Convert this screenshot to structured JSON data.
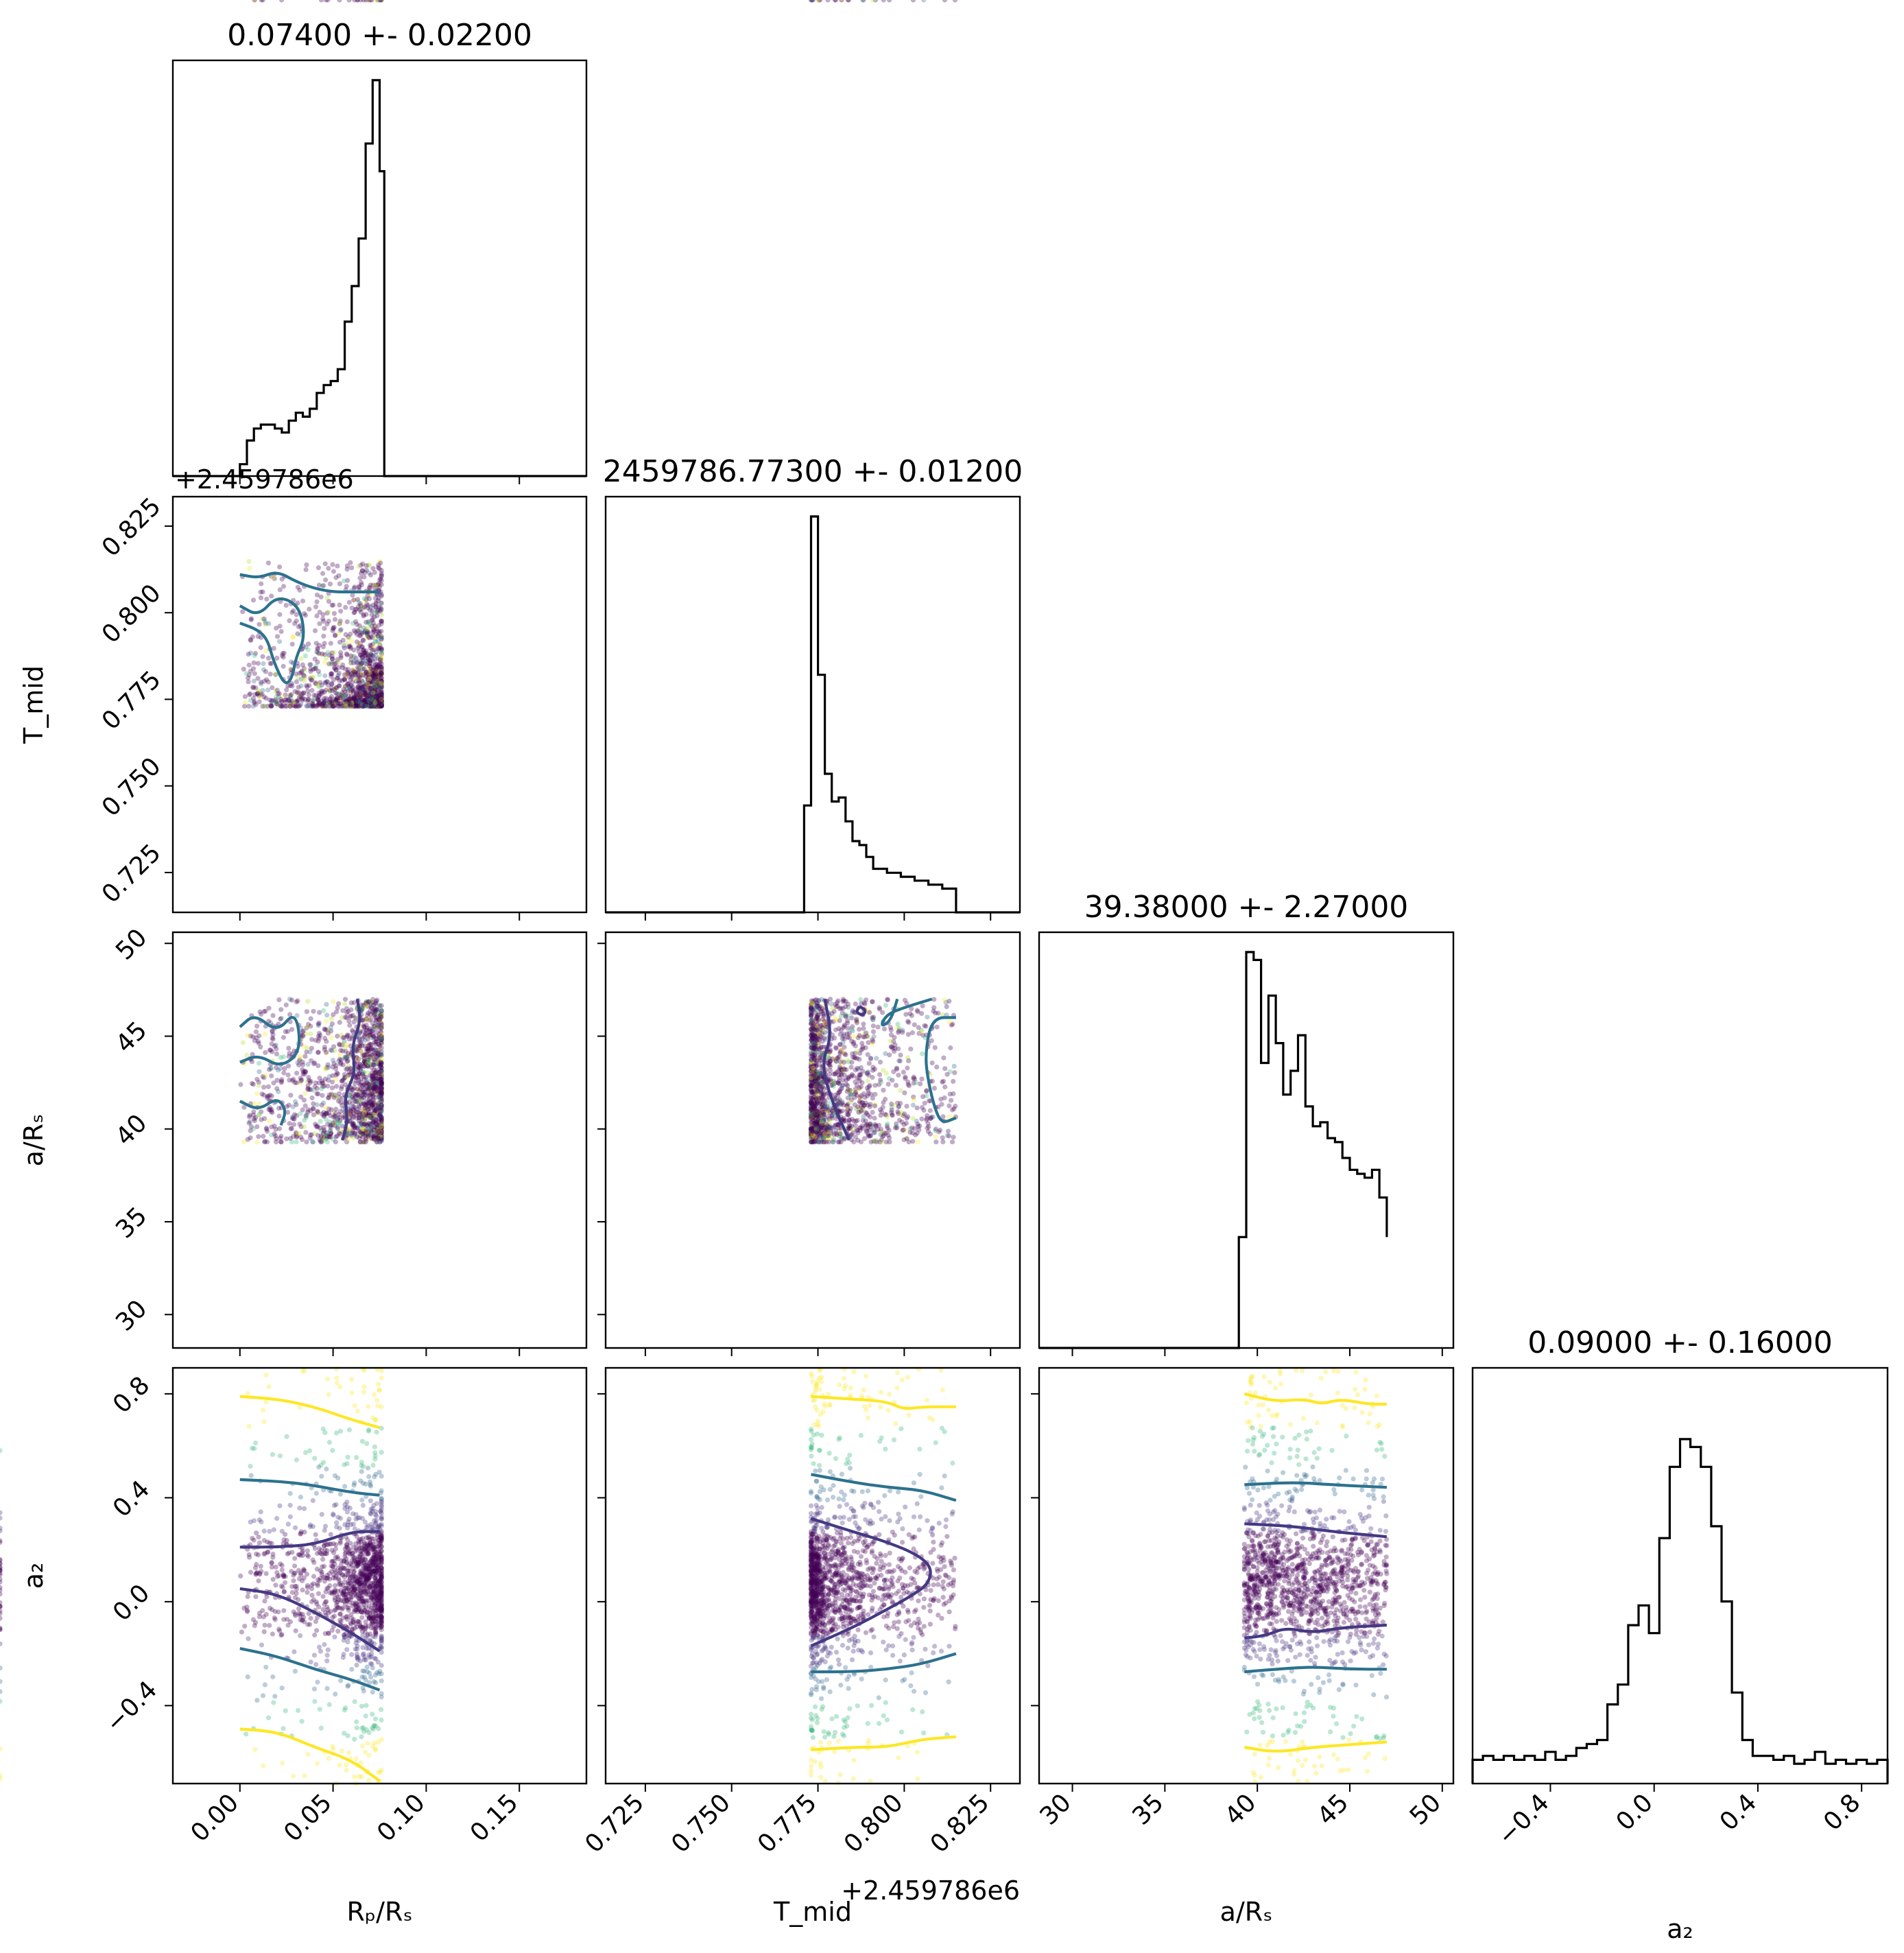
{
  "chart_data": {
    "type": "corner",
    "parameters": [
      {
        "key": "rp",
        "axis_label": "Rₚ/Rₛ",
        "title": "0.07400 +- 0.02200",
        "range": [
          -0.036,
          0.186
        ],
        "ticks": [
          "0.00",
          "0.05",
          "0.10",
          "0.15"
        ],
        "tick_values": [
          0.0,
          0.05,
          0.1,
          0.15
        ],
        "offset_text": "",
        "hist": {
          "edges": [
            0.0,
            0.00375,
            0.0075,
            0.01125,
            0.015,
            0.01875,
            0.0225,
            0.02625,
            0.03,
            0.03375,
            0.0375,
            0.04125,
            0.045,
            0.04875,
            0.0525,
            0.05625,
            0.06,
            0.06375,
            0.0675,
            0.07125,
            0.075,
            0.0775
          ],
          "values": [
            0.03,
            0.09,
            0.12,
            0.13,
            0.13,
            0.12,
            0.11,
            0.14,
            0.16,
            0.15,
            0.17,
            0.21,
            0.23,
            0.24,
            0.27,
            0.39,
            0.48,
            0.6,
            0.84,
            1.0,
            0.77
          ],
          "max": 1.05
        }
      },
      {
        "key": "tmid",
        "axis_label": "T_mid",
        "title": "2459786.77300 +- 0.01200",
        "range": [
          0.7135,
          0.8335
        ],
        "ticks": [
          "0.725",
          "0.750",
          "0.775",
          "0.800",
          "0.825"
        ],
        "tick_values": [
          0.725,
          0.75,
          0.775,
          0.8,
          0.825
        ],
        "offset_text": "+2.459786e6",
        "hist": {
          "edges": [
            0.771,
            0.773,
            0.775,
            0.777,
            0.779,
            0.781,
            0.783,
            0.785,
            0.787,
            0.789,
            0.791,
            0.793,
            0.795,
            0.797,
            0.799,
            0.801,
            0.803,
            0.805,
            0.807,
            0.809,
            0.811,
            0.813,
            0.815
          ],
          "values": [
            0.27,
            1.0,
            0.6,
            0.35,
            0.28,
            0.29,
            0.23,
            0.18,
            0.17,
            0.14,
            0.11,
            0.11,
            0.1,
            0.1,
            0.09,
            0.09,
            0.08,
            0.08,
            0.07,
            0.07,
            0.06,
            0.06
          ],
          "max": 1.05
        }
      },
      {
        "key": "ars",
        "axis_label": "a/Rₛ",
        "title": "39.38000 +- 2.27000",
        "range": [
          28.2,
          50.6
        ],
        "ticks": [
          "30",
          "35",
          "40",
          "45",
          "50"
        ],
        "tick_values": [
          30,
          35,
          40,
          45,
          50
        ],
        "offset_text": "",
        "hist": {
          "edges": [
            39.0,
            39.4,
            39.8,
            40.2,
            40.6,
            41.0,
            41.4,
            41.8,
            42.2,
            42.6,
            43.0,
            43.4,
            43.8,
            44.2,
            44.6,
            45.0,
            45.4,
            45.8,
            46.2,
            46.6,
            47.0
          ],
          "values": [
            0.28,
            1.0,
            0.98,
            0.72,
            0.89,
            0.77,
            0.64,
            0.7,
            0.79,
            0.61,
            0.56,
            0.57,
            0.53,
            0.52,
            0.48,
            0.45,
            0.44,
            0.43,
            0.45,
            0.38,
            0.28
          ],
          "max": 1.05
        }
      },
      {
        "key": "a2",
        "axis_label": "a₂",
        "title": "0.09000 +- 0.16000",
        "range": [
          -0.7,
          0.9
        ],
        "ticks": [
          "−0.4",
          "0.0",
          "0.4",
          "0.8"
        ],
        "tick_values": [
          -0.4,
          0.0,
          0.4,
          0.8
        ],
        "offset_text": "",
        "hist": {
          "edges": [
            -0.7,
            -0.66,
            -0.62,
            -0.58,
            -0.54,
            -0.5,
            -0.46,
            -0.42,
            -0.38,
            -0.34,
            -0.3,
            -0.26,
            -0.22,
            -0.18,
            -0.14,
            -0.1,
            -0.06,
            -0.02,
            0.02,
            0.06,
            0.1,
            0.14,
            0.18,
            0.22,
            0.26,
            0.3,
            0.34,
            0.38,
            0.42,
            0.46,
            0.5,
            0.54,
            0.58,
            0.62,
            0.66,
            0.7,
            0.74,
            0.78,
            0.82,
            0.86,
            0.9
          ],
          "values": [
            0.06,
            0.07,
            0.06,
            0.07,
            0.06,
            0.07,
            0.06,
            0.08,
            0.06,
            0.07,
            0.09,
            0.1,
            0.11,
            0.2,
            0.25,
            0.4,
            0.45,
            0.38,
            0.62,
            0.8,
            0.87,
            0.85,
            0.8,
            0.65,
            0.46,
            0.23,
            0.11,
            0.07,
            0.07,
            0.06,
            0.07,
            0.05,
            0.06,
            0.08,
            0.05,
            0.06,
            0.05,
            0.06,
            0.05,
            0.06
          ],
          "max": 1.05
        }
      }
    ],
    "scatter_ranges": {
      "rp": [
        0.0,
        0.076
      ],
      "tmid": [
        0.773,
        0.815
      ],
      "ars": [
        39.3,
        47.0
      ],
      "a2": [
        -0.7,
        0.9
      ]
    },
    "contours": [
      {
        "row": 1,
        "col": 0,
        "level": "mid",
        "points": [
          [
            0.0,
            0.811
          ],
          [
            0.01,
            0.81
          ],
          [
            0.02,
            0.812
          ],
          [
            0.03,
            0.809
          ],
          [
            0.04,
            0.807
          ],
          [
            0.05,
            0.806
          ],
          [
            0.06,
            0.806
          ],
          [
            0.075,
            0.806
          ]
        ]
      },
      {
        "row": 1,
        "col": 0,
        "level": "mid",
        "points": [
          [
            0.0,
            0.802
          ],
          [
            0.01,
            0.799
          ],
          [
            0.02,
            0.805
          ],
          [
            0.032,
            0.802
          ],
          [
            0.035,
            0.793
          ],
          [
            0.03,
            0.787
          ],
          [
            0.028,
            0.781
          ],
          [
            0.024,
            0.779
          ],
          [
            0.018,
            0.786
          ],
          [
            0.015,
            0.792
          ],
          [
            0.01,
            0.795
          ],
          [
            0.0,
            0.797
          ]
        ]
      },
      {
        "row": 2,
        "col": 0,
        "level": "mid",
        "points": [
          [
            0.0,
            45.5
          ],
          [
            0.008,
            46.2
          ],
          [
            0.02,
            45.2
          ],
          [
            0.03,
            46.4
          ],
          [
            0.033,
            44.2
          ],
          [
            0.022,
            43.3
          ],
          [
            0.01,
            44.0
          ],
          [
            0.0,
            43.6
          ]
        ]
      },
      {
        "row": 2,
        "col": 0,
        "level": "mid",
        "points": [
          [
            0.0,
            41.5
          ],
          [
            0.01,
            41.0
          ],
          [
            0.02,
            41.7
          ],
          [
            0.025,
            41.0
          ],
          [
            0.022,
            40.2
          ]
        ]
      },
      {
        "row": 2,
        "col": 0,
        "level": "low",
        "points": [
          [
            0.063,
            47.0
          ],
          [
            0.065,
            45.8
          ],
          [
            0.06,
            44.5
          ],
          [
            0.062,
            43.0
          ],
          [
            0.056,
            41.8
          ],
          [
            0.058,
            40.5
          ],
          [
            0.055,
            39.4
          ]
        ]
      },
      {
        "row": 2,
        "col": 1,
        "level": "mid",
        "points": [
          [
            0.798,
            47.0
          ],
          [
            0.796,
            45.8
          ],
          [
            0.793,
            45.5
          ],
          [
            0.795,
            46.2
          ],
          [
            0.801,
            46.6
          ],
          [
            0.808,
            47.0
          ]
        ]
      },
      {
        "row": 2,
        "col": 1,
        "level": "mid",
        "points": [
          [
            0.815,
            46.0
          ],
          [
            0.808,
            46.0
          ],
          [
            0.806,
            44.0
          ],
          [
            0.807,
            42.5
          ],
          [
            0.809,
            41.0
          ],
          [
            0.811,
            40.3
          ],
          [
            0.815,
            40.6
          ]
        ]
      },
      {
        "row": 2,
        "col": 1,
        "level": "low",
        "points": [
          [
            0.777,
            47.0
          ],
          [
            0.779,
            45.0
          ],
          [
            0.776,
            43.5
          ],
          [
            0.779,
            41.5
          ],
          [
            0.784,
            39.4
          ]
        ]
      },
      {
        "row": 2,
        "col": 1,
        "level": "low",
        "points": [
          [
            0.787,
            46.6
          ],
          [
            0.789,
            46.4
          ],
          [
            0.788,
            46.1
          ],
          [
            0.786,
            46.3
          ],
          [
            0.787,
            46.6
          ]
        ]
      },
      {
        "row": 3,
        "col": 0,
        "level": "high",
        "points": [
          [
            0.0,
            0.79
          ],
          [
            0.02,
            0.78
          ],
          [
            0.04,
            0.75
          ],
          [
            0.06,
            0.7
          ],
          [
            0.075,
            0.67
          ]
        ]
      },
      {
        "row": 3,
        "col": 0,
        "level": "mid",
        "points": [
          [
            0.0,
            0.47
          ],
          [
            0.03,
            0.46
          ],
          [
            0.06,
            0.42
          ],
          [
            0.075,
            0.41
          ]
        ]
      },
      {
        "row": 3,
        "col": 0,
        "level": "low",
        "points": [
          [
            0.0,
            0.21
          ],
          [
            0.02,
            0.21
          ],
          [
            0.04,
            0.22
          ],
          [
            0.06,
            0.27
          ],
          [
            0.075,
            0.27
          ]
        ]
      },
      {
        "row": 3,
        "col": 0,
        "level": "low",
        "points": [
          [
            0.0,
            0.05
          ],
          [
            0.02,
            0.03
          ],
          [
            0.04,
            -0.04
          ],
          [
            0.06,
            -0.12
          ],
          [
            0.075,
            -0.19
          ]
        ]
      },
      {
        "row": 3,
        "col": 0,
        "level": "mid",
        "points": [
          [
            0.0,
            -0.18
          ],
          [
            0.02,
            -0.21
          ],
          [
            0.04,
            -0.26
          ],
          [
            0.06,
            -0.3
          ],
          [
            0.075,
            -0.34
          ]
        ]
      },
      {
        "row": 3,
        "col": 0,
        "level": "high",
        "points": [
          [
            0.0,
            -0.49
          ],
          [
            0.02,
            -0.5
          ],
          [
            0.04,
            -0.56
          ],
          [
            0.06,
            -0.61
          ],
          [
            0.075,
            -0.69
          ]
        ]
      },
      {
        "row": 3,
        "col": 1,
        "level": "high",
        "points": [
          [
            0.773,
            0.79
          ],
          [
            0.785,
            0.78
          ],
          [
            0.795,
            0.77
          ],
          [
            0.8,
            0.74
          ],
          [
            0.805,
            0.75
          ],
          [
            0.815,
            0.75
          ]
        ]
      },
      {
        "row": 3,
        "col": 1,
        "level": "mid",
        "points": [
          [
            0.773,
            0.49
          ],
          [
            0.785,
            0.46
          ],
          [
            0.795,
            0.44
          ],
          [
            0.805,
            0.43
          ],
          [
            0.815,
            0.39
          ]
        ]
      },
      {
        "row": 3,
        "col": 1,
        "level": "low",
        "points": [
          [
            0.773,
            0.32
          ],
          [
            0.785,
            0.27
          ],
          [
            0.795,
            0.23
          ],
          [
            0.804,
            0.18
          ],
          [
            0.808,
            0.13
          ],
          [
            0.807,
            0.07
          ],
          [
            0.803,
            0.03
          ],
          [
            0.795,
            -0.03
          ],
          [
            0.785,
            -0.1
          ],
          [
            0.773,
            -0.17
          ]
        ]
      },
      {
        "row": 3,
        "col": 1,
        "level": "mid",
        "points": [
          [
            0.773,
            -0.27
          ],
          [
            0.785,
            -0.27
          ],
          [
            0.795,
            -0.26
          ],
          [
            0.805,
            -0.24
          ],
          [
            0.815,
            -0.2
          ]
        ]
      },
      {
        "row": 3,
        "col": 1,
        "level": "high",
        "points": [
          [
            0.773,
            -0.57
          ],
          [
            0.785,
            -0.56
          ],
          [
            0.795,
            -0.56
          ],
          [
            0.805,
            -0.53
          ],
          [
            0.815,
            -0.52
          ]
        ]
      },
      {
        "row": 3,
        "col": 2,
        "level": "high",
        "points": [
          [
            39.3,
            0.8
          ],
          [
            41.0,
            0.77
          ],
          [
            42.5,
            0.78
          ],
          [
            43.5,
            0.76
          ],
          [
            44.5,
            0.78
          ],
          [
            46.0,
            0.76
          ],
          [
            47.0,
            0.76
          ]
        ]
      },
      {
        "row": 3,
        "col": 2,
        "level": "mid",
        "points": [
          [
            39.3,
            0.45
          ],
          [
            42.0,
            0.46
          ],
          [
            44.0,
            0.45
          ],
          [
            47.0,
            0.44
          ]
        ]
      },
      {
        "row": 3,
        "col": 2,
        "level": "low",
        "points": [
          [
            39.3,
            0.3
          ],
          [
            42.0,
            0.29
          ],
          [
            44.0,
            0.27
          ],
          [
            47.0,
            0.25
          ]
        ]
      },
      {
        "row": 3,
        "col": 2,
        "level": "low",
        "points": [
          [
            39.3,
            -0.14
          ],
          [
            40.5,
            -0.13
          ],
          [
            41.5,
            -0.1
          ],
          [
            43.0,
            -0.12
          ],
          [
            44.5,
            -0.1
          ],
          [
            47.0,
            -0.09
          ]
        ]
      },
      {
        "row": 3,
        "col": 2,
        "level": "mid",
        "points": [
          [
            39.3,
            -0.27
          ],
          [
            41.0,
            -0.26
          ],
          [
            43.0,
            -0.25
          ],
          [
            45.0,
            -0.26
          ],
          [
            47.0,
            -0.26
          ]
        ]
      },
      {
        "row": 3,
        "col": 2,
        "level": "high",
        "points": [
          [
            39.3,
            -0.56
          ],
          [
            41.0,
            -0.58
          ],
          [
            43.0,
            -0.56
          ],
          [
            45.0,
            -0.55
          ],
          [
            47.0,
            -0.54
          ]
        ]
      }
    ],
    "colors": {
      "contour_low": "#443983",
      "contour_mid": "#2c728e",
      "contour_high": "#fde725",
      "points_dense": "#440154",
      "hist_line": "#000000"
    }
  }
}
